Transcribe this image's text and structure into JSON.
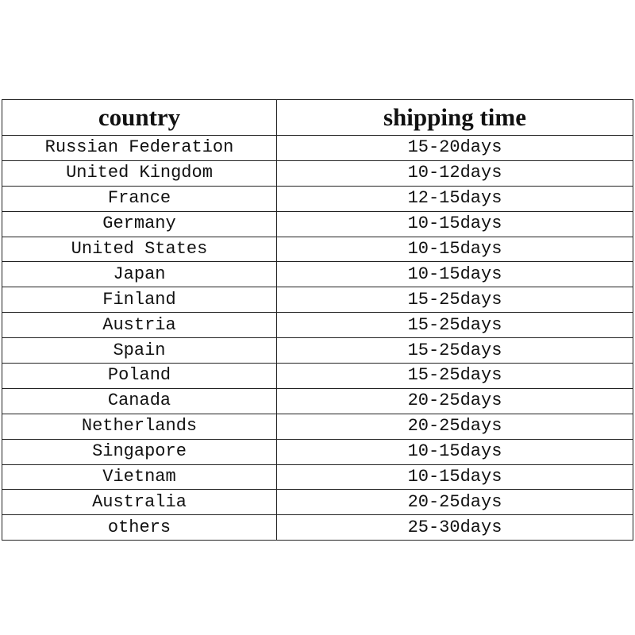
{
  "table": {
    "headers": [
      "country",
      "shipping time"
    ],
    "rows": [
      [
        "Russian Federation",
        "15-20days"
      ],
      [
        "United Kingdom",
        "10-12days"
      ],
      [
        "France",
        "12-15days"
      ],
      [
        "Germany",
        "10-15days"
      ],
      [
        "United States",
        "10-15days"
      ],
      [
        "Japan",
        "10-15days"
      ],
      [
        "Finland",
        "15-25days"
      ],
      [
        "Austria",
        "15-25days"
      ],
      [
        "Spain",
        "15-25days"
      ],
      [
        "Poland",
        "15-25days"
      ],
      [
        "Canada",
        "20-25days"
      ],
      [
        "Netherlands",
        "20-25days"
      ],
      [
        "Singapore",
        "10-15days"
      ],
      [
        "Vietnam",
        "10-15days"
      ],
      [
        "Australia",
        "20-25days"
      ],
      [
        "others",
        "25-30days"
      ]
    ]
  }
}
